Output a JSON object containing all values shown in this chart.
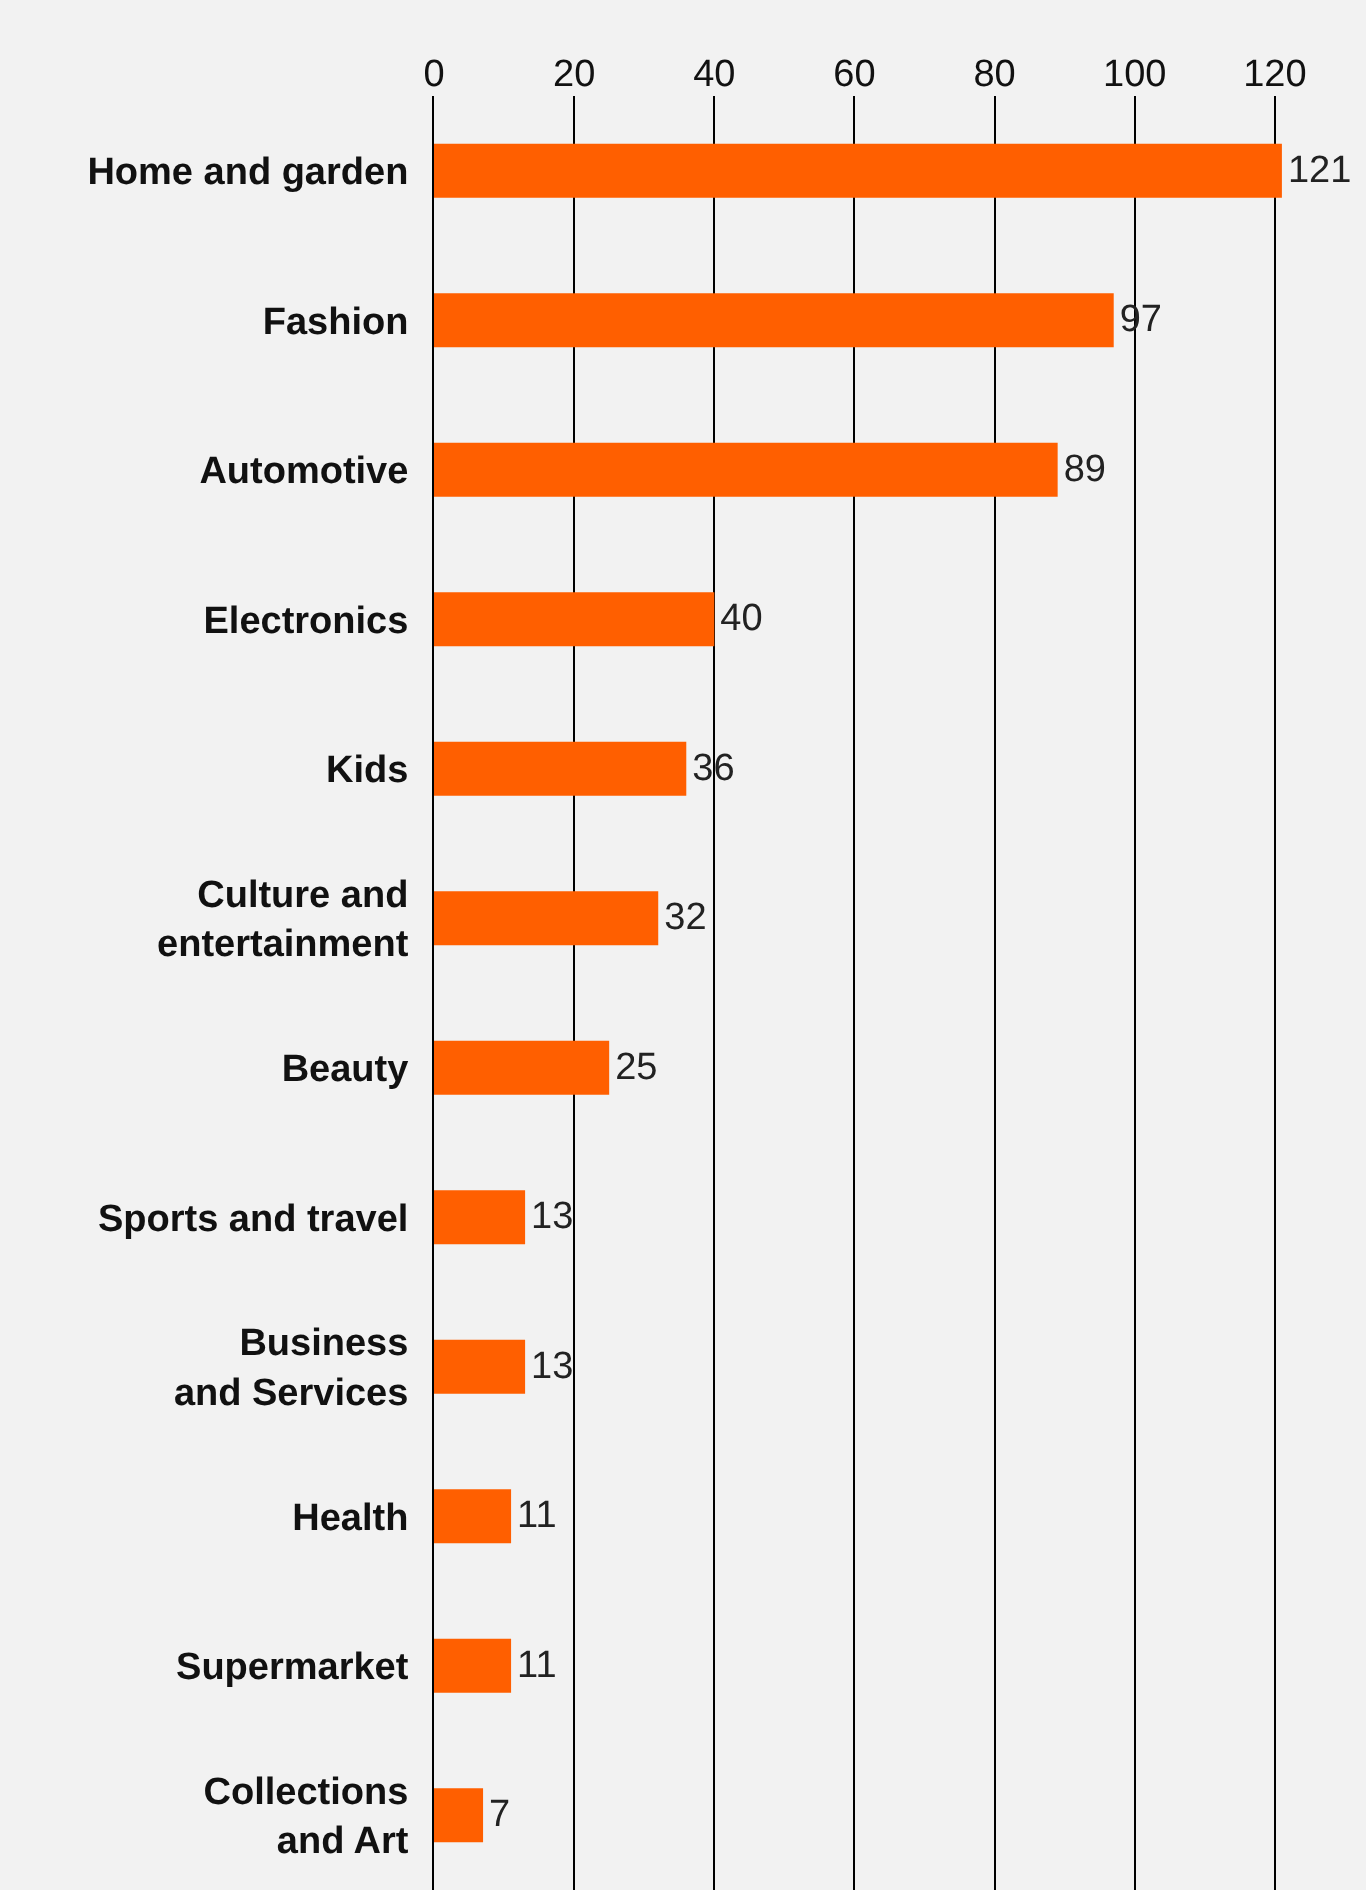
{
  "chart_data": {
    "type": "bar",
    "orientation": "horizontal",
    "categories": [
      "Home and garden",
      "Fashion",
      "Automotive",
      "Electronics",
      "Kids",
      "Culture and\nentertainment",
      "Beauty",
      "Sports and travel",
      "Business\nand Services",
      "Health",
      "Supermarket",
      "Collections\nand Art"
    ],
    "values": [
      121,
      97,
      89,
      40,
      36,
      32,
      25,
      13,
      13,
      11,
      11,
      7
    ],
    "color": "#ff5f00",
    "xlim": [
      0,
      133
    ],
    "xticks": [
      0,
      20,
      40,
      60,
      80,
      100,
      120
    ],
    "grid": "x",
    "data_labels": true
  }
}
